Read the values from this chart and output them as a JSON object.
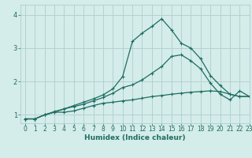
{
  "xlabel": "Humidex (Indice chaleur)",
  "background_color": "#d4ecea",
  "grid_color": "#aecece",
  "line_color": "#1e6e60",
  "xlim": [
    -0.5,
    23
  ],
  "ylim": [
    0.75,
    4.3
  ],
  "yticks": [
    1,
    2,
    3,
    4
  ],
  "xticks": [
    0,
    1,
    2,
    3,
    4,
    5,
    6,
    7,
    8,
    9,
    10,
    11,
    12,
    13,
    14,
    15,
    16,
    17,
    18,
    19,
    20,
    21,
    22,
    23
  ],
  "line1_x": [
    0,
    1,
    2,
    3,
    4,
    5,
    6,
    7,
    8,
    9,
    10,
    11,
    12,
    13,
    14,
    15,
    16,
    17,
    18,
    19,
    20,
    21,
    22,
    23
  ],
  "line1_y": [
    0.88,
    0.88,
    1.0,
    1.08,
    1.08,
    1.12,
    1.2,
    1.28,
    1.35,
    1.38,
    1.42,
    1.45,
    1.5,
    1.55,
    1.58,
    1.62,
    1.65,
    1.68,
    1.7,
    1.72,
    1.7,
    1.62,
    1.55,
    1.55
  ],
  "line2_x": [
    0,
    1,
    2,
    3,
    4,
    5,
    6,
    7,
    8,
    9,
    10,
    11,
    12,
    13,
    14,
    15,
    16,
    17,
    18,
    19,
    20,
    21,
    22,
    23
  ],
  "line2_y": [
    0.88,
    0.88,
    1.0,
    1.1,
    1.18,
    1.25,
    1.32,
    1.42,
    1.52,
    1.65,
    1.82,
    1.9,
    2.05,
    2.25,
    2.45,
    2.75,
    2.8,
    2.62,
    2.38,
    1.95,
    1.62,
    1.45,
    1.72,
    1.55
  ],
  "line3_x": [
    0,
    1,
    2,
    3,
    4,
    5,
    6,
    7,
    8,
    9,
    10,
    11,
    12,
    13,
    14,
    15,
    16,
    17,
    18,
    19,
    20,
    21,
    22,
    23
  ],
  "line3_y": [
    0.88,
    0.88,
    1.0,
    1.08,
    1.18,
    1.28,
    1.38,
    1.48,
    1.6,
    1.78,
    2.15,
    3.2,
    3.45,
    3.65,
    3.88,
    3.55,
    3.15,
    3.0,
    2.68,
    2.18,
    1.88,
    1.62,
    1.55,
    1.55
  ],
  "marker": "+",
  "markersize": 3,
  "linewidth": 0.9,
  "tick_fontsize": 5.5,
  "xlabel_fontsize": 6.5
}
